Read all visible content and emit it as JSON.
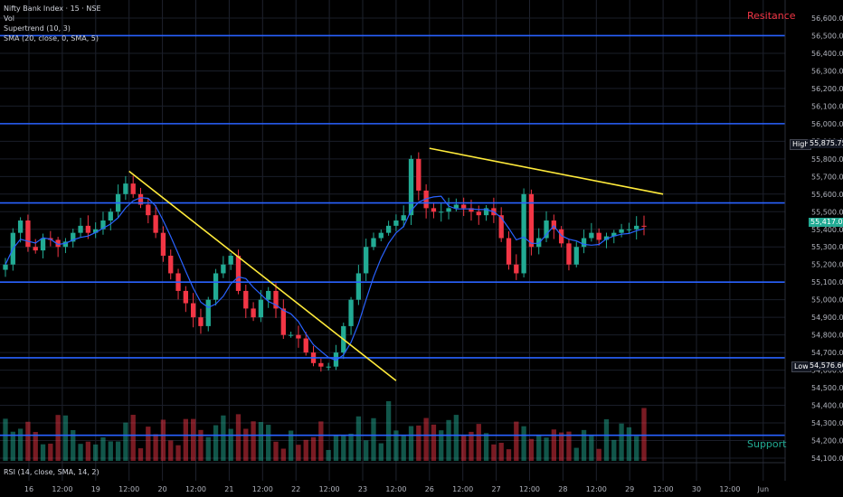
{
  "legend": {
    "symbol": "Nifty Bank Index · 15 · NSE",
    "vol": "Vol",
    "supertrend": "Supertrend (10, 3)",
    "sma": "SMA (20, close, 0, SMA, 5)",
    "rsi": "RSI (14, close, SMA, 14, 2)"
  },
  "zones": {
    "resistance": "Resitance",
    "support": "Support"
  },
  "tags": {
    "high_label": "High",
    "high_value": "55,875.75",
    "last_value": "55,417.00",
    "low_label": "Low",
    "low_value": "54,576.60"
  },
  "colors": {
    "horizontal_levels": "#2962ff",
    "trendlines": "#ffeb3b",
    "up": "#22ab94",
    "down": "#f23645",
    "sma": "#2962ff"
  },
  "chart_data": {
    "type": "candlestick",
    "title": "Nifty Bank Index · 15 · NSE",
    "y_axis": {
      "side": "right",
      "ylim": [
        54000,
        56700
      ],
      "ticks": [
        "56,600.00",
        "56,500.00",
        "56,400.00",
        "56,300.00",
        "56,200.00",
        "56,100.00",
        "56,000.00",
        "55,900.00",
        "55,800.00",
        "55,700.00",
        "55,600.00",
        "55,500.00",
        "55,400.00",
        "55,300.00",
        "55,200.00",
        "55,100.00",
        "55,000.00",
        "54,900.00",
        "54,800.00",
        "54,700.00",
        "54,600.00",
        "54,500.00",
        "54,400.00",
        "54,300.00",
        "54,200.00",
        "54,100.00"
      ]
    },
    "x_axis": {
      "ticks": [
        "16",
        "12:00",
        "19",
        "12:00",
        "20",
        "12:00",
        "21",
        "12:00",
        "22",
        "12:00",
        "23",
        "12:00",
        "26",
        "12:00",
        "27",
        "12:00",
        "28",
        "12:00",
        "29",
        "12:00",
        "30",
        "12:00",
        "Jun"
      ]
    },
    "horizontal_levels": [
      56500,
      56000,
      55550,
      55100,
      54670,
      54230
    ],
    "trendlines": [
      {
        "from": [
          "19 12:00",
          55730
        ],
        "to": [
          "23 12:00",
          54540
        ]
      },
      {
        "from": [
          "26",
          55860
        ],
        "to": [
          "29 12:00",
          55600
        ]
      }
    ],
    "high": 55875.75,
    "low": 54576.6,
    "last": 55417.0,
    "path_points": [
      55200,
      55380,
      55450,
      55300,
      55280,
      55350,
      55340,
      55300,
      55330,
      55380,
      55420,
      55380,
      55400,
      55450,
      55500,
      55600,
      55660,
      55600,
      55540,
      55480,
      55380,
      55250,
      55150,
      55050,
      54980,
      54900,
      54850,
      55000,
      55150,
      55200,
      55250,
      55050,
      54950,
      54900,
      55000,
      55050,
      54950,
      54800,
      54800,
      54780,
      54700,
      54640,
      54620,
      54620,
      54700,
      54850,
      55000,
      55150,
      55300,
      55350,
      55380,
      55420,
      55450,
      55480,
      55800,
      55620,
      55520,
      55500,
      55500,
      55520,
      55540,
      55520,
      55500,
      55480,
      55520,
      55480,
      55350,
      55200,
      55150,
      55600,
      55300,
      55350,
      55450,
      55400,
      55320,
      55200,
      55300,
      55350,
      55380,
      55340,
      55360,
      55380,
      55400,
      55400,
      55420,
      55417
    ]
  }
}
